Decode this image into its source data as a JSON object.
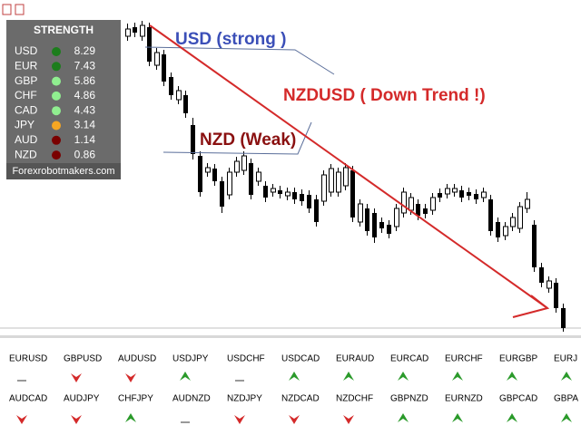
{
  "strength_panel": {
    "title": "STRENGTH",
    "rows": [
      {
        "currency": "USD",
        "color": "#1c7d1c",
        "value": "8.29"
      },
      {
        "currency": "EUR",
        "color": "#1c7d1c",
        "value": "7.43"
      },
      {
        "currency": "GBP",
        "color": "#90ee90",
        "value": "5.86"
      },
      {
        "currency": "CHF",
        "color": "#90ee90",
        "value": "4.86"
      },
      {
        "currency": "CAD",
        "color": "#90ee90",
        "value": "4.43"
      },
      {
        "currency": "JPY",
        "color": "#f5a623",
        "value": "3.14"
      },
      {
        "currency": "AUD",
        "color": "#7a0000",
        "value": "1.14"
      },
      {
        "currency": "NZD",
        "color": "#7a0000",
        "value": "0.86"
      }
    ],
    "footer": "Forexrobotmakers.com"
  },
  "annotations": {
    "usd": "USD (strong )",
    "pair": "NZDUSD ( Down Trend !)",
    "nzd": "NZD (Weak)"
  },
  "pairs": [
    [
      {
        "name": "EURUSD",
        "signal": "flat"
      },
      {
        "name": "GBPUSD",
        "signal": "down"
      },
      {
        "name": "AUDUSD",
        "signal": "down"
      },
      {
        "name": "USDJPY",
        "signal": "up"
      },
      {
        "name": "USDCHF",
        "signal": "flat"
      },
      {
        "name": "USDCAD",
        "signal": "up"
      },
      {
        "name": "EURAUD",
        "signal": "up"
      },
      {
        "name": "EURCAD",
        "signal": "up"
      },
      {
        "name": "EURCHF",
        "signal": "up"
      },
      {
        "name": "EURGBP",
        "signal": "up"
      },
      {
        "name": "EURJ",
        "signal": "up"
      }
    ],
    [
      {
        "name": "AUDCAD",
        "signal": "down"
      },
      {
        "name": "AUDJPY",
        "signal": "down"
      },
      {
        "name": "CHFJPY",
        "signal": "up"
      },
      {
        "name": "AUDNZD",
        "signal": "flat"
      },
      {
        "name": "NZDJPY",
        "signal": "down"
      },
      {
        "name": "NZDCAD",
        "signal": "down"
      },
      {
        "name": "NZDCHF",
        "signal": "down"
      },
      {
        "name": "GBPNZD",
        "signal": "up"
      },
      {
        "name": "EURNZD",
        "signal": "up"
      },
      {
        "name": "GBPCAD",
        "signal": "up"
      },
      {
        "name": "GBPA",
        "signal": "up"
      }
    ]
  ]
}
